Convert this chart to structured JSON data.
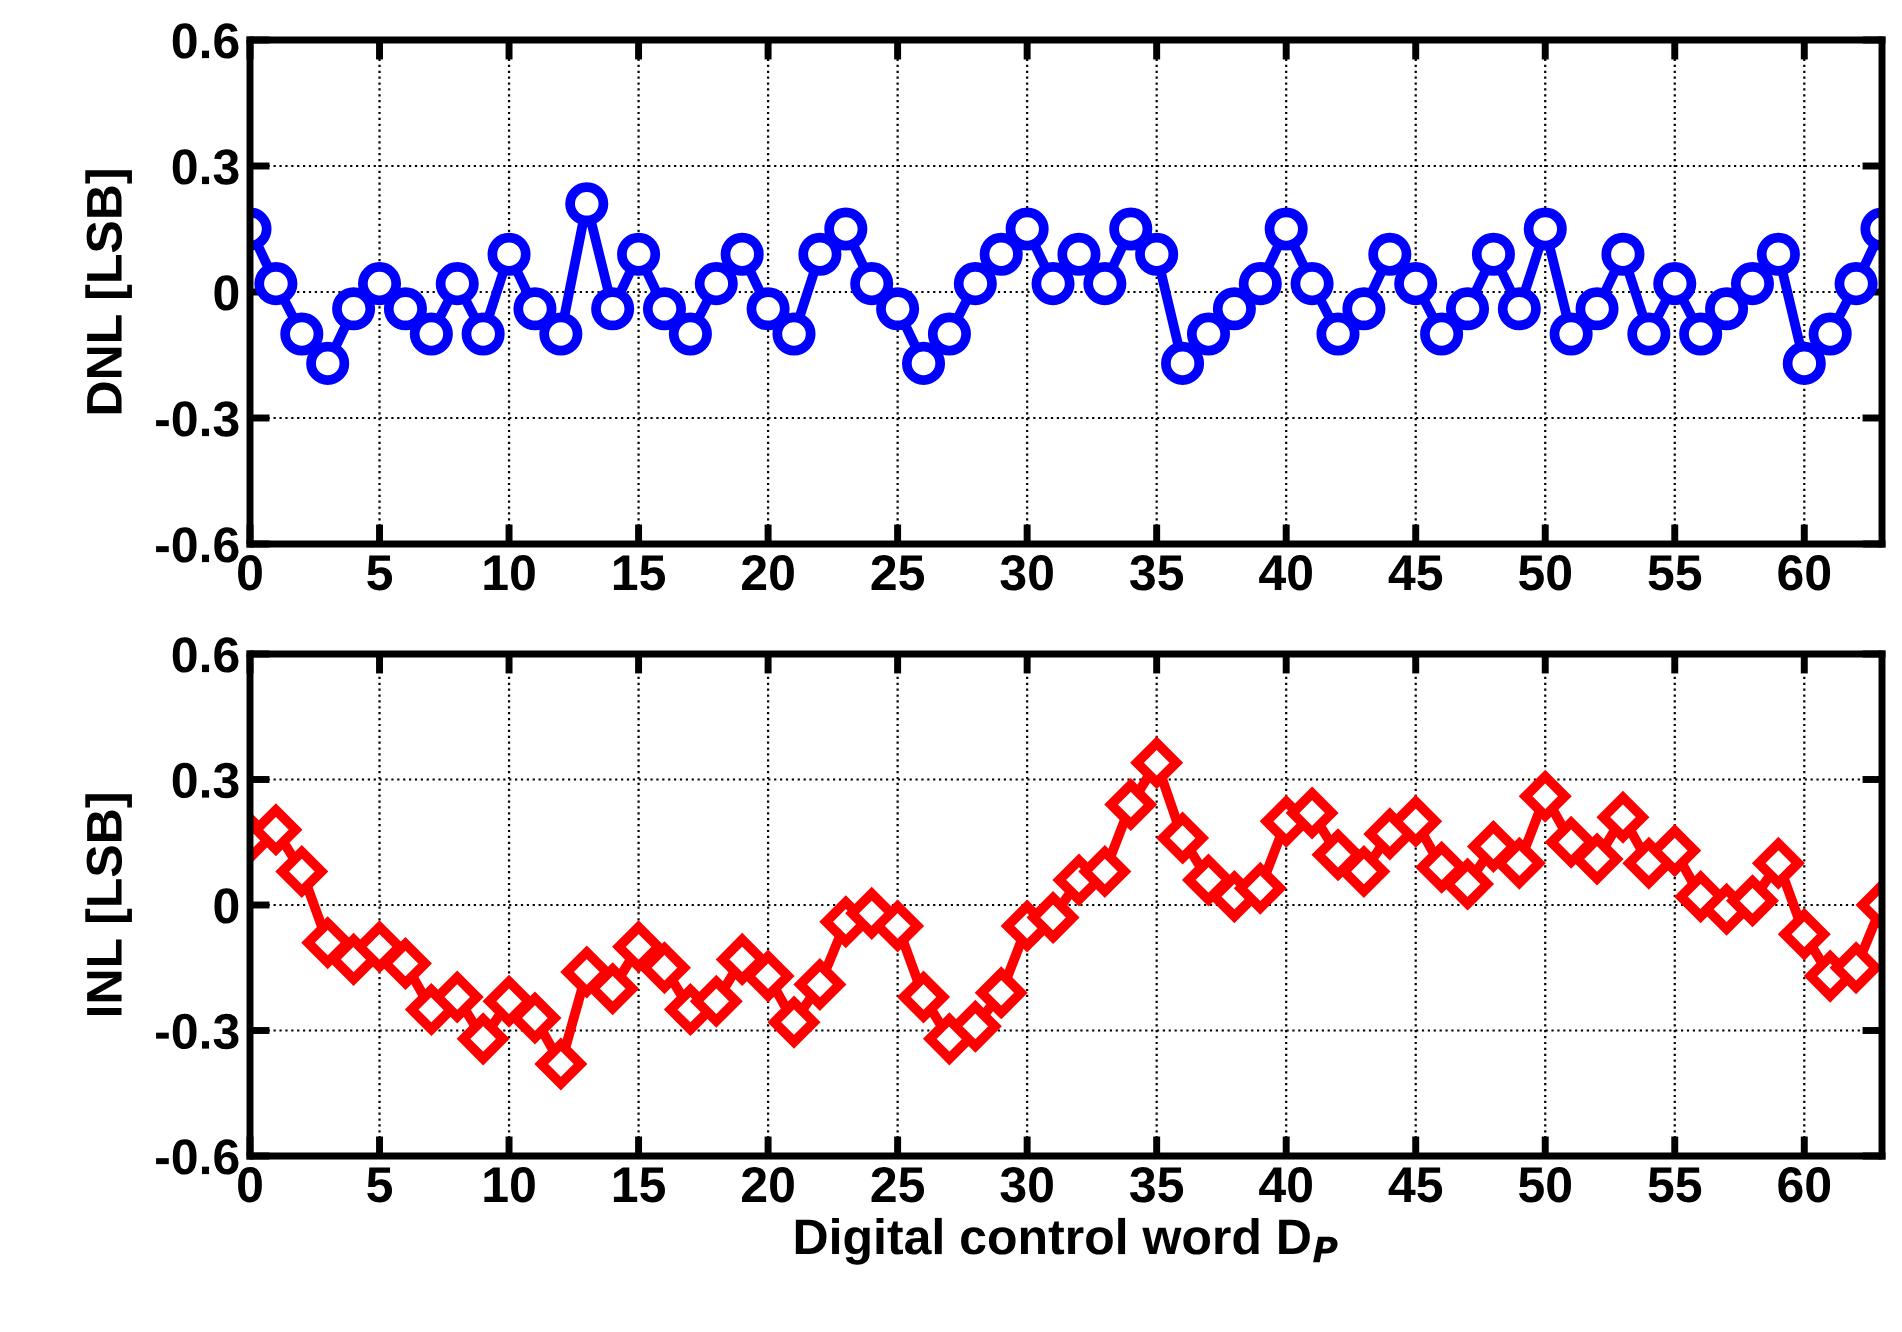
{
  "chart_data": [
    {
      "type": "line",
      "ylabel": "DNL [LSB]",
      "x": [
        0,
        1,
        2,
        3,
        4,
        5,
        6,
        7,
        8,
        9,
        10,
        11,
        12,
        13,
        14,
        15,
        16,
        17,
        18,
        19,
        20,
        21,
        22,
        23,
        24,
        25,
        26,
        27,
        28,
        29,
        30,
        31,
        32,
        33,
        34,
        35,
        36,
        37,
        38,
        39,
        40,
        41,
        42,
        43,
        44,
        45,
        46,
        47,
        48,
        49,
        50,
        51,
        52,
        53,
        54,
        55,
        56,
        57,
        58,
        59,
        60,
        61,
        62,
        63
      ],
      "series": [
        {
          "color": "#0000ff",
          "marker": "circle",
          "values": [
            0.15,
            0.02,
            -0.1,
            -0.17,
            -0.04,
            0.02,
            -0.04,
            -0.1,
            0.02,
            -0.1,
            0.09,
            -0.04,
            -0.1,
            0.21,
            -0.04,
            0.09,
            -0.04,
            -0.1,
            0.02,
            0.09,
            -0.04,
            -0.1,
            0.09,
            0.15,
            0.02,
            -0.04,
            -0.17,
            -0.1,
            0.02,
            0.09,
            0.15,
            0.02,
            0.09,
            0.02,
            0.15,
            0.09,
            -0.17,
            -0.1,
            -0.04,
            0.02,
            0.15,
            0.02,
            -0.1,
            -0.04,
            0.09,
            0.02,
            -0.1,
            -0.04,
            0.09,
            -0.04,
            0.15,
            -0.1,
            -0.04,
            0.09,
            -0.1,
            0.02,
            -0.1,
            -0.04,
            0.02,
            0.09,
            -0.17,
            -0.1,
            0.02,
            0.15
          ]
        }
      ],
      "xlim": [
        0,
        63
      ],
      "xticks": [
        0,
        5,
        10,
        15,
        20,
        25,
        30,
        35,
        40,
        45,
        50,
        55,
        60
      ],
      "ylim": [
        -0.6,
        0.6
      ],
      "yticks": [
        -0.6,
        -0.3,
        0,
        0.3,
        0.6
      ],
      "grid": true,
      "line_style": "solid"
    },
    {
      "type": "line",
      "ylabel": "INL [LSB]",
      "xlabel": "Digital control word D$_{P}$",
      "x": [
        0,
        1,
        2,
        3,
        4,
        5,
        6,
        7,
        8,
        9,
        10,
        11,
        12,
        13,
        14,
        15,
        16,
        17,
        18,
        19,
        20,
        21,
        22,
        23,
        24,
        25,
        26,
        27,
        28,
        29,
        30,
        31,
        32,
        33,
        34,
        35,
        36,
        37,
        38,
        39,
        40,
        41,
        42,
        43,
        44,
        45,
        46,
        47,
        48,
        49,
        50,
        51,
        52,
        53,
        54,
        55,
        56,
        57,
        58,
        59,
        60,
        61,
        62,
        63
      ],
      "series": [
        {
          "color": "#ff0000",
          "marker": "diamond",
          "values": [
            0.16,
            0.18,
            0.08,
            -0.09,
            -0.13,
            -0.1,
            -0.14,
            -0.25,
            -0.22,
            -0.32,
            -0.23,
            -0.27,
            -0.38,
            -0.16,
            -0.2,
            -0.1,
            -0.15,
            -0.25,
            -0.23,
            -0.13,
            -0.17,
            -0.28,
            -0.19,
            -0.04,
            -0.02,
            -0.05,
            -0.22,
            -0.32,
            -0.29,
            -0.21,
            -0.05,
            -0.03,
            0.06,
            0.08,
            0.24,
            0.34,
            0.16,
            0.06,
            0.02,
            0.04,
            0.2,
            0.22,
            0.12,
            0.08,
            0.17,
            0.2,
            0.09,
            0.05,
            0.14,
            0.1,
            0.26,
            0.15,
            0.11,
            0.21,
            0.1,
            0.13,
            0.02,
            -0.01,
            0.01,
            0.1,
            -0.07,
            -0.17,
            -0.15,
            0
          ]
        }
      ],
      "xlim": [
        0,
        63
      ],
      "xticks": [
        0,
        5,
        10,
        15,
        20,
        25,
        30,
        35,
        40,
        45,
        50,
        55,
        60
      ],
      "ylim": [
        -0.6,
        0.6
      ],
      "yticks": [
        -0.6,
        -0.3,
        0,
        0.3,
        0.6
      ],
      "grid": true,
      "line_style": "solid"
    }
  ]
}
